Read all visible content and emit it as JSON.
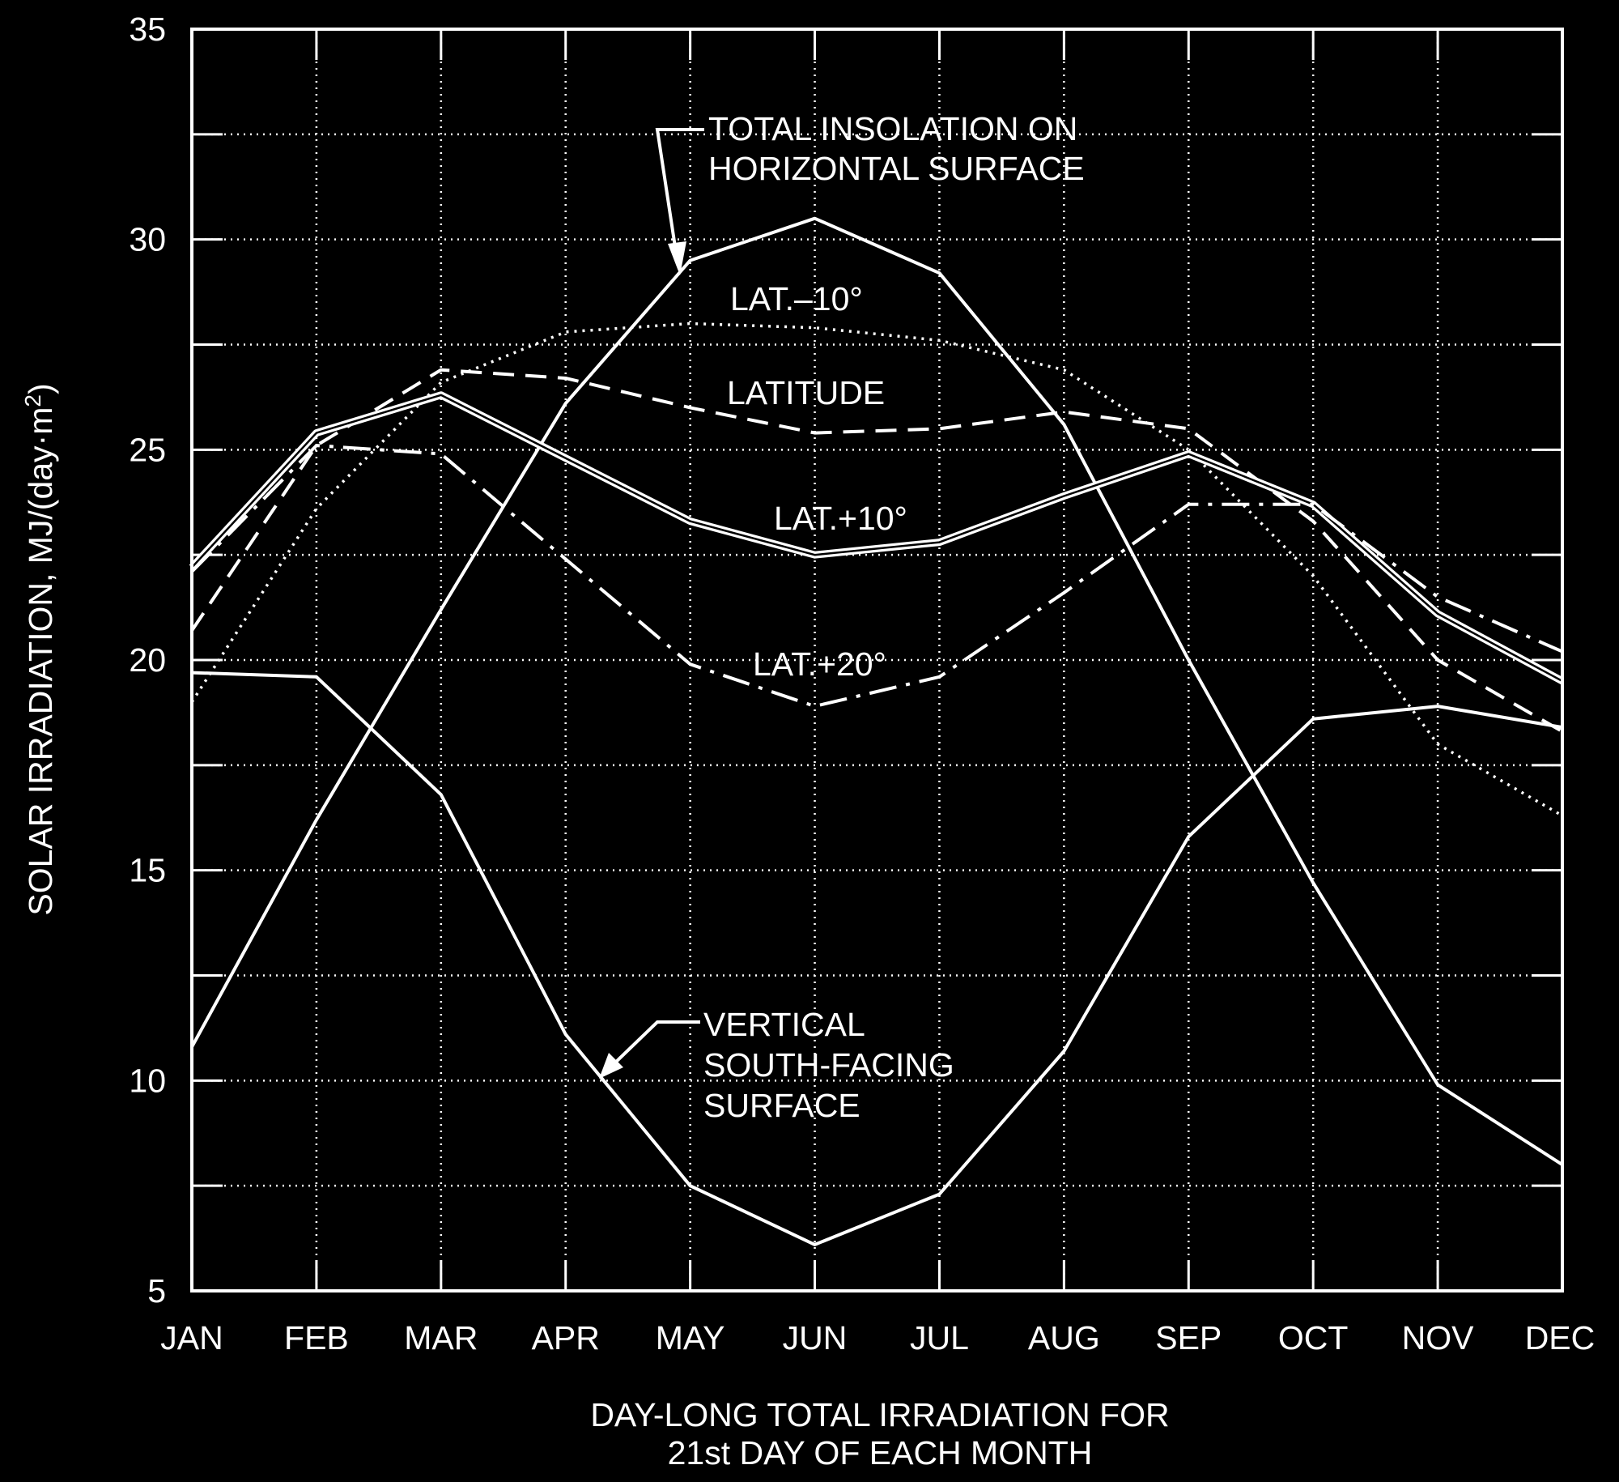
{
  "chart_data": {
    "type": "line",
    "xlabel": [
      "DAY-LONG TOTAL IRRADIATION FOR",
      "21st DAY OF EACH MONTH"
    ],
    "ylabel_text": "SOLAR IRRADIATION, MJ/(day·m",
    "ylabel_sup": "2",
    "ylabel_close": ")",
    "categories": [
      "JAN",
      "FEB",
      "MAR",
      "APR",
      "MAY",
      "JUN",
      "JUL",
      "AUG",
      "SEP",
      "OCT",
      "NOV",
      "DEC"
    ],
    "ylim": [
      5,
      35
    ],
    "yticks": [
      5,
      10,
      15,
      20,
      25,
      30,
      35
    ],
    "grid": true,
    "colors": {
      "background": "#000000",
      "foreground": "#ffffff"
    },
    "series": [
      {
        "key": "horizontal",
        "style": "solid",
        "values": [
          10.8,
          16.2,
          21.2,
          26.1,
          29.5,
          30.5,
          29.2,
          25.6,
          20.0,
          14.7,
          9.9,
          8.0
        ]
      },
      {
        "key": "lat_minus10",
        "style": "dotted",
        "values": [
          19.0,
          23.6,
          26.6,
          27.8,
          28.0,
          27.9,
          27.6,
          26.9,
          25.0,
          22.0,
          18.0,
          16.3
        ]
      },
      {
        "key": "latitude",
        "style": "dashed",
        "values": [
          20.7,
          25.1,
          26.9,
          26.7,
          26.0,
          25.4,
          25.5,
          25.9,
          25.5,
          23.3,
          20.0,
          18.3
        ]
      },
      {
        "key": "lat_plus10",
        "style": "double",
        "values": [
          22.2,
          25.4,
          26.3,
          24.8,
          23.3,
          22.5,
          22.8,
          23.9,
          24.9,
          23.7,
          21.1,
          19.5
        ]
      },
      {
        "key": "lat_plus20",
        "style": "dashdot",
        "values": [
          22.1,
          25.1,
          24.9,
          22.4,
          19.9,
          18.9,
          19.6,
          21.6,
          23.7,
          23.7,
          21.5,
          20.2
        ]
      },
      {
        "key": "vertical",
        "style": "solid",
        "values": [
          19.7,
          19.6,
          16.8,
          11.1,
          7.5,
          6.1,
          7.3,
          10.7,
          15.8,
          18.6,
          18.9,
          18.4
        ]
      }
    ],
    "annotations": {
      "horizontal": [
        "TOTAL INSOLATION ON",
        "HORIZONTAL SURFACE"
      ],
      "lat_minus10": "LAT.–10°",
      "latitude": "LATITUDE",
      "lat_plus10": "LAT.+10°",
      "lat_plus20": "LAT.+20°",
      "vertical": [
        "VERTICAL",
        "SOUTH-FACING",
        "SURFACE"
      ]
    }
  }
}
